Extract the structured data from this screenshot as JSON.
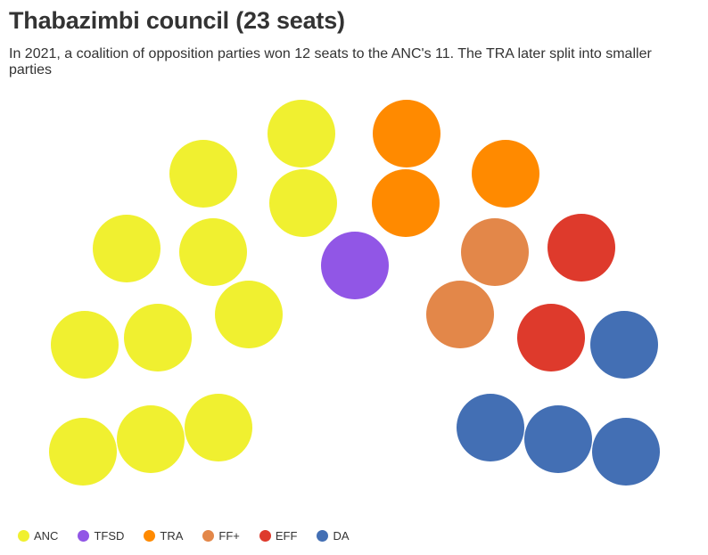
{
  "title": "Thabazimbi council (23 seats)",
  "subtitle": "In 2021, a coalition of opposition parties won 12 seats to the ANC's 11. The TRA later split into smaller parties",
  "chart_data": {
    "type": "parliament",
    "total_seats": 23,
    "series": [
      {
        "name": "ANC",
        "seats": 11,
        "color": "#F0F030"
      },
      {
        "name": "TFSD",
        "seats": 1,
        "color": "#9156E6"
      },
      {
        "name": "TRA",
        "seats": 3,
        "color": "#FF8A00"
      },
      {
        "name": "FF+",
        "seats": 2,
        "color": "#E38749"
      },
      {
        "name": "EFF",
        "seats": 2,
        "color": "#DE3A2C"
      },
      {
        "name": "DA",
        "seats": 4,
        "color": "#436FB4"
      }
    ],
    "legend_position": "bottom-left"
  }
}
